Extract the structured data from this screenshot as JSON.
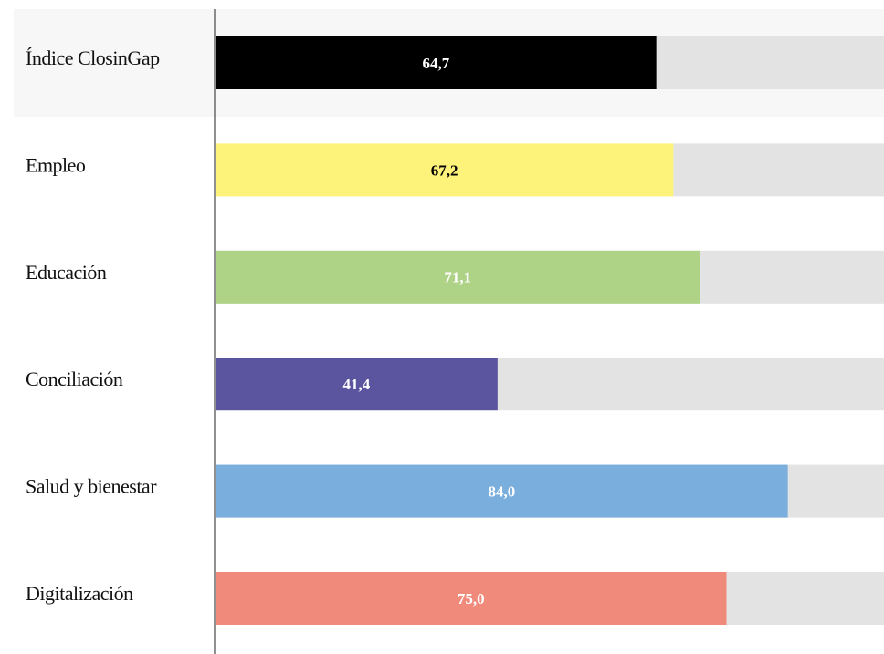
{
  "chart_data": {
    "type": "bar",
    "categories": [
      "Índice ClosinGap",
      "Empleo",
      "Educación",
      "Conciliación",
      "Salud y bienestar",
      "Digitalización"
    ],
    "values": [
      64.7,
      67.2,
      71.1,
      41.4,
      84.0,
      75.0
    ],
    "value_labels": [
      "64,7",
      "67,2",
      "71,1",
      "41,4",
      "84,0",
      "75,0"
    ],
    "colors": [
      "#000000",
      "#fdf27a",
      "#aed387",
      "#5b559f",
      "#7aaedc",
      "#f08b7c"
    ],
    "label_colors": [
      "#ffffff",
      "#000000",
      "#ffffff",
      "#ffffff",
      "#ffffff",
      "#ffffff"
    ],
    "track_color": "#e3e3e3",
    "xlim": [
      0,
      100
    ]
  }
}
